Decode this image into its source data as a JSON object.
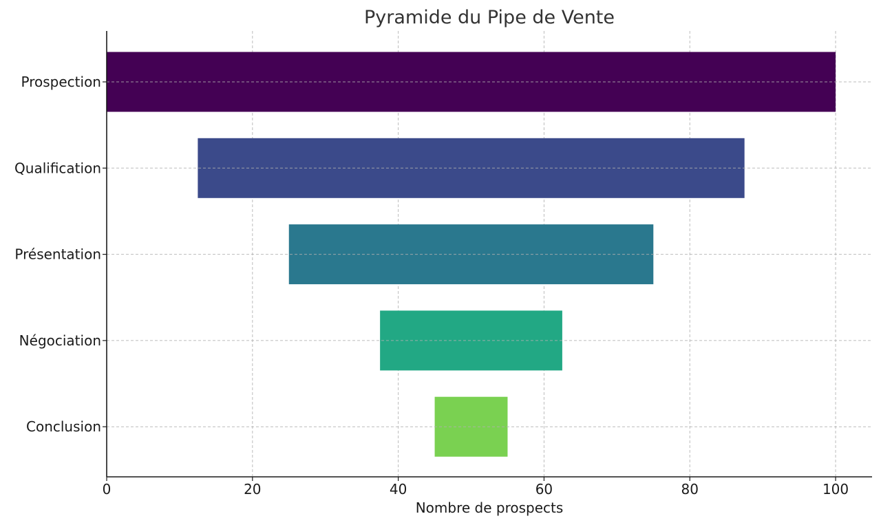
{
  "chart_data": {
    "type": "bar",
    "orientation": "horizontal",
    "title": "Pyramide du Pipe de Vente",
    "xlabel": "Nombre de prospects",
    "ylabel": "",
    "xlim": [
      0,
      105
    ],
    "xticks": [
      0,
      20,
      40,
      60,
      80,
      100
    ],
    "categories": [
      "Prospection",
      "Qualification",
      "Présentation",
      "Négociation",
      "Conclusion"
    ],
    "values": [
      100,
      75,
      50,
      25,
      10
    ],
    "colors": [
      "#440154",
      "#3b4a8a",
      "#2a788e",
      "#22a884",
      "#7ad151"
    ],
    "centered": true,
    "center": 50,
    "grid": true,
    "legend": "none"
  }
}
